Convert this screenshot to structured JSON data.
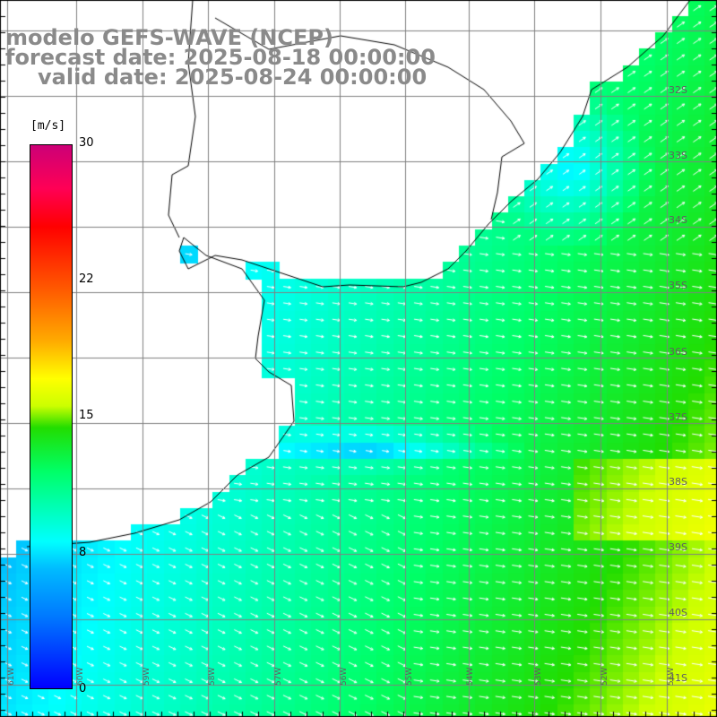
{
  "header": {
    "line1": "modelo GEFS-WAVE (NCEP)",
    "line2": "forecast date: 2025-08-18 00:00:00",
    "line3": "valid date: 2025-08-24 00:00:00"
  },
  "colorbar": {
    "units": "[m/s]",
    "ticks": [
      "0",
      "8",
      "15",
      "22",
      "30"
    ]
  },
  "lat_labels": [
    "32S",
    "33S",
    "34S",
    "35S",
    "36S",
    "37S",
    "38S",
    "39S",
    "40S",
    "41S"
  ],
  "lon_labels": [
    "61W",
    "60W",
    "59W",
    "58W",
    "57W",
    "56W",
    "55W",
    "54W",
    "53W",
    "52W",
    "51W"
  ],
  "colors": {
    "land": "#ffffff",
    "coast": "#000000",
    "grid": "#808080",
    "title": "#8a8a8a",
    "arrow": "#ffffff"
  }
}
